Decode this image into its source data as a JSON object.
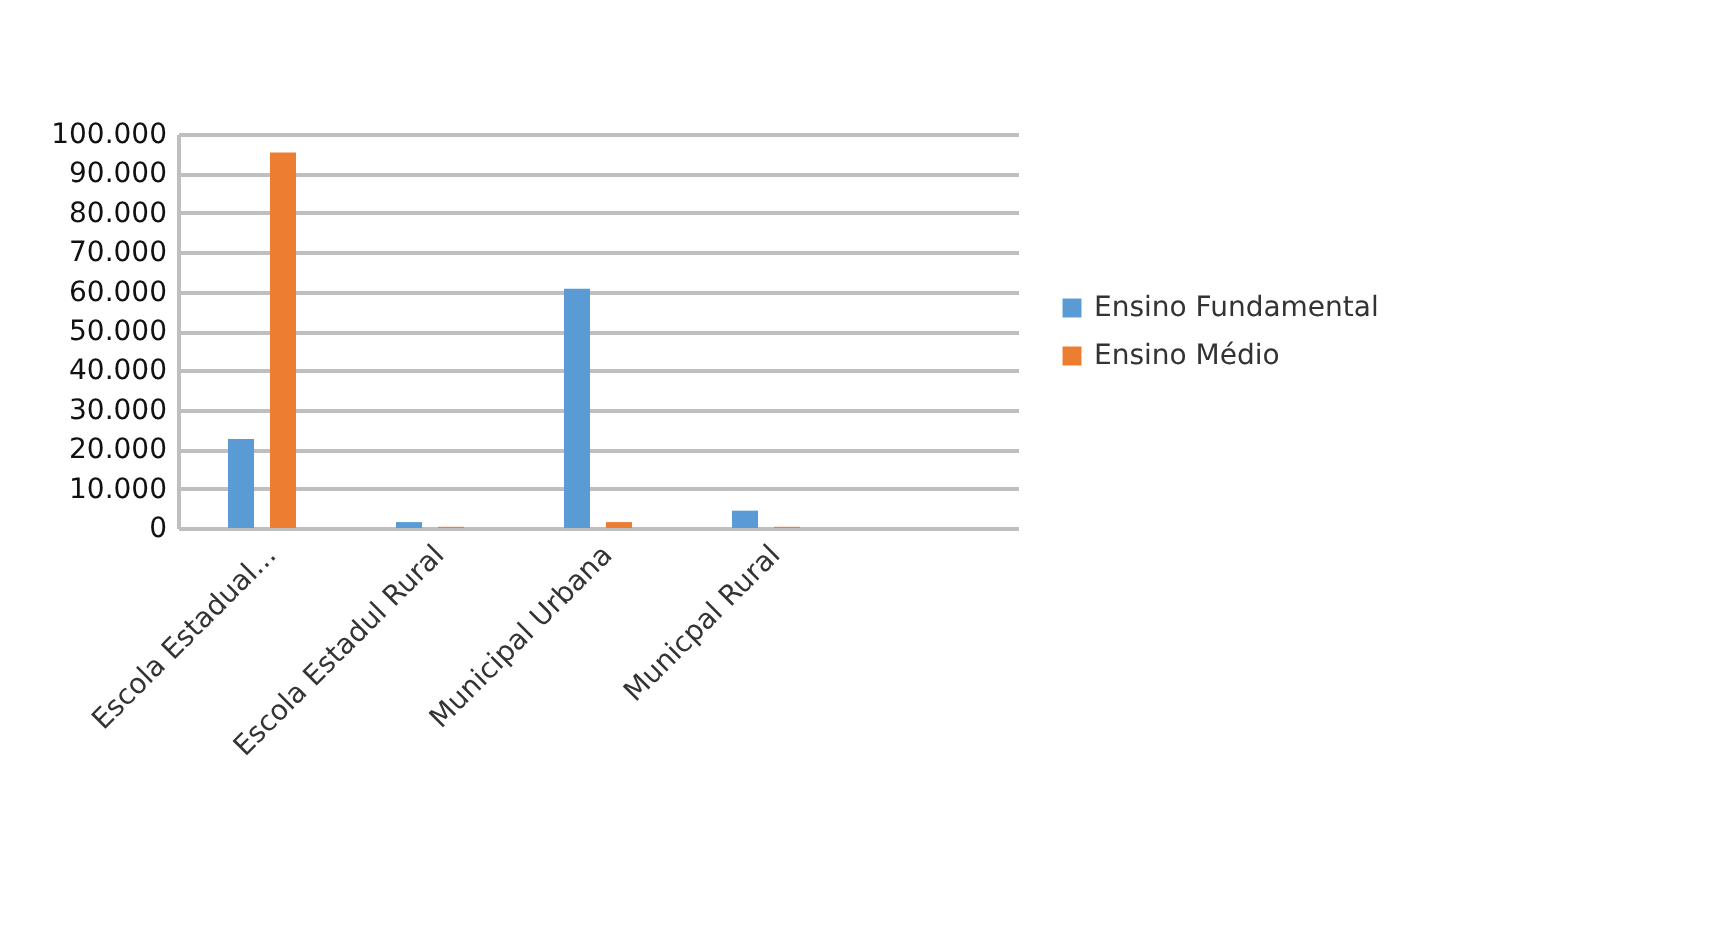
{
  "chart_data": {
    "type": "bar",
    "categories": [
      "Escola Estadual...",
      "Escola Estadul Rural",
      "Municipal Urbana",
      "Municpal Rural",
      null
    ],
    "series": [
      {
        "name": "Ensino Fundamental",
        "color": "#5b9bd5",
        "values": [
          22600,
          1500,
          60700,
          4400,
          null
        ]
      },
      {
        "name": "Ensino Médio",
        "color": "#ed7d31",
        "values": [
          95300,
          300,
          1500,
          300,
          null
        ]
      }
    ],
    "ylim": [
      0,
      100000
    ],
    "yticks": [
      {
        "value": 0,
        "label": "0"
      },
      {
        "value": 10000,
        "label": "10.000"
      },
      {
        "value": 20000,
        "label": "20.000"
      },
      {
        "value": 30000,
        "label": "30.000"
      },
      {
        "value": 40000,
        "label": "40.000"
      },
      {
        "value": 50000,
        "label": "50.000"
      },
      {
        "value": 60000,
        "label": "60.000"
      },
      {
        "value": 70000,
        "label": "70.000"
      },
      {
        "value": 80000,
        "label": "80.000"
      },
      {
        "value": 90000,
        "label": "90.000"
      },
      {
        "value": 100000,
        "label": "100.000"
      }
    ],
    "grid": "y",
    "legend": "right"
  }
}
